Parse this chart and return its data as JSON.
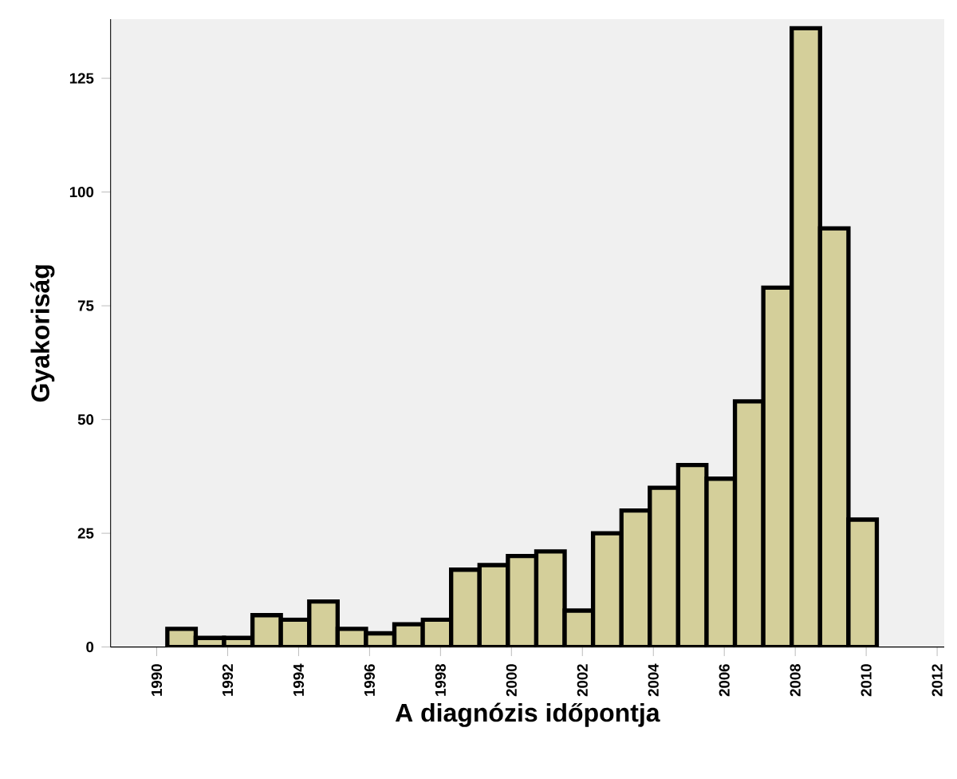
{
  "chart_data": {
    "type": "histogram",
    "xlabel": "A diagnózis időpontja",
    "ylabel": "Gyakoriság",
    "bins": [
      1990.3,
      1991.1,
      1991.9,
      1992.7,
      1993.5,
      1994.3,
      1995.1,
      1995.9,
      1996.7,
      1997.5,
      1998.3,
      1999.1,
      1999.9,
      2000.7,
      2001.5,
      2002.3,
      2003.1,
      2003.9,
      2004.7,
      2005.5,
      2006.3,
      2007.1,
      2007.9,
      2008.7,
      2009.5,
      2010.3
    ],
    "values": [
      4,
      2,
      2,
      7,
      6,
      10,
      4,
      3,
      5,
      6,
      17,
      18,
      20,
      21,
      8,
      25,
      30,
      35,
      40,
      37,
      54,
      79,
      136,
      92,
      28
    ],
    "color": "#d4cf9a",
    "xlim": [
      1988.7,
      2012.2
    ],
    "ylim": [
      0,
      138
    ],
    "xticks": [
      1990,
      1992,
      1994,
      1996,
      1998,
      2000,
      2002,
      2004,
      2006,
      2008,
      2010,
      2012
    ],
    "yticks": [
      0,
      25,
      50,
      75,
      100,
      125
    ],
    "grid": false
  }
}
